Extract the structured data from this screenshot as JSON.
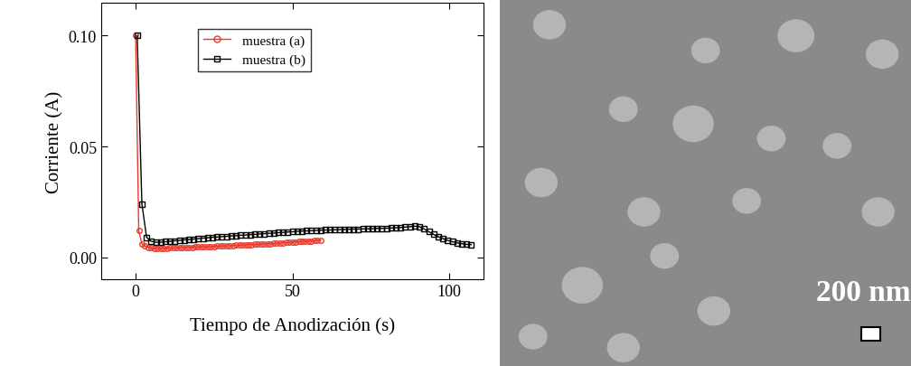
{
  "chart_data": {
    "type": "line",
    "x_label": "Tiempo de Anodización (s)",
    "y_label": "Corriente (A)",
    "xlim": [
      -11,
      111
    ],
    "xticks": [
      0,
      50,
      100
    ],
    "ylim": [
      -0.01,
      0.115
    ],
    "yticks": [
      {
        "value": 0,
        "label": "0.00"
      },
      0.05,
      {
        "value": 0.1,
        "label": "0.10"
      }
    ],
    "legend": "upper center",
    "series": [
      {
        "name": "muestra (a)",
        "color": "#e8392b",
        "marker": "circle",
        "line_style": "solid",
        "x": [
          0,
          1,
          2,
          3,
          4,
          5,
          6,
          7,
          8,
          9,
          10,
          11,
          12,
          13,
          14,
          15,
          16,
          17,
          18,
          19,
          20,
          21,
          22,
          23,
          24,
          25,
          26,
          27,
          28,
          29,
          30,
          31,
          32,
          33,
          34,
          35,
          36,
          37,
          38,
          39,
          40,
          41,
          42,
          43,
          44,
          45,
          46,
          47,
          48,
          49,
          50,
          51,
          52,
          53,
          54,
          55,
          56,
          57,
          58,
          59
        ],
        "values": [
          0.1,
          0.012,
          0.006,
          0.005,
          0.0045,
          0.0042,
          0.004,
          0.004,
          0.004,
          0.0041,
          0.0041,
          0.0042,
          0.0042,
          0.0043,
          0.0043,
          0.0044,
          0.0044,
          0.0045,
          0.0045,
          0.0046,
          0.0046,
          0.0047,
          0.0047,
          0.0048,
          0.0048,
          0.0049,
          0.005,
          0.005,
          0.0051,
          0.0052,
          0.0052,
          0.0053,
          0.0054,
          0.0054,
          0.0055,
          0.0056,
          0.0056,
          0.0057,
          0.0058,
          0.0058,
          0.0059,
          0.006,
          0.0061,
          0.0061,
          0.0062,
          0.0063,
          0.0064,
          0.0065,
          0.0066,
          0.0067,
          0.0068,
          0.0069,
          0.007,
          0.0071,
          0.0072,
          0.0073,
          0.0074,
          0.0075,
          0.0076,
          0.0078
        ]
      },
      {
        "name": "muestra (b)",
        "color": "#000000",
        "marker": "square",
        "line_style": "solid",
        "x": [
          0.5,
          2.0,
          3.5,
          5.0,
          6.5,
          8.0,
          9.5,
          11.0,
          12.5,
          14.0,
          15.5,
          17.0,
          18.5,
          20.0,
          21.5,
          23.0,
          24.5,
          26.0,
          27.5,
          29.0,
          30.5,
          32.0,
          33.5,
          35.0,
          36.5,
          38.0,
          39.5,
          41.0,
          42.5,
          44.0,
          45.5,
          47.0,
          48.5,
          50.0,
          51.5,
          53.0,
          54.5,
          56.0,
          57.5,
          59.0,
          60.5,
          62.0,
          63.5,
          65.0,
          66.5,
          68.0,
          69.5,
          71.0,
          72.5,
          74.0,
          75.5,
          77.0,
          78.5,
          80.0,
          81.5,
          83.0,
          84.5,
          86.0,
          87.5,
          89.0,
          90.5,
          92.0,
          93.5,
          95.0,
          96.5,
          98.0,
          99.5,
          101.0,
          102.5,
          104.0,
          105.5,
          107.0
        ],
        "values": [
          0.1,
          0.024,
          0.009,
          0.0072,
          0.0068,
          0.0068,
          0.007,
          0.0072,
          0.0074,
          0.0076,
          0.0078,
          0.008,
          0.0082,
          0.0084,
          0.0086,
          0.0088,
          0.009,
          0.0091,
          0.0093,
          0.0094,
          0.0096,
          0.0097,
          0.0099,
          0.01,
          0.0102,
          0.0103,
          0.0105,
          0.0106,
          0.0108,
          0.0109,
          0.0111,
          0.0112,
          0.0114,
          0.0115,
          0.0117,
          0.0118,
          0.0119,
          0.012,
          0.0121,
          0.0122,
          0.0123,
          0.0123,
          0.0124,
          0.0125,
          0.0125,
          0.0126,
          0.0127,
          0.0127,
          0.0128,
          0.0128,
          0.0129,
          0.013,
          0.013,
          0.0131,
          0.0132,
          0.0133,
          0.0134,
          0.0136,
          0.0138,
          0.014,
          0.0138,
          0.0128,
          0.0115,
          0.0103,
          0.0093,
          0.0084,
          0.0076,
          0.007,
          0.0065,
          0.0061,
          0.0058,
          0.0057
        ]
      }
    ]
  },
  "micrograph": {
    "scale_bar": "200 nm"
  }
}
